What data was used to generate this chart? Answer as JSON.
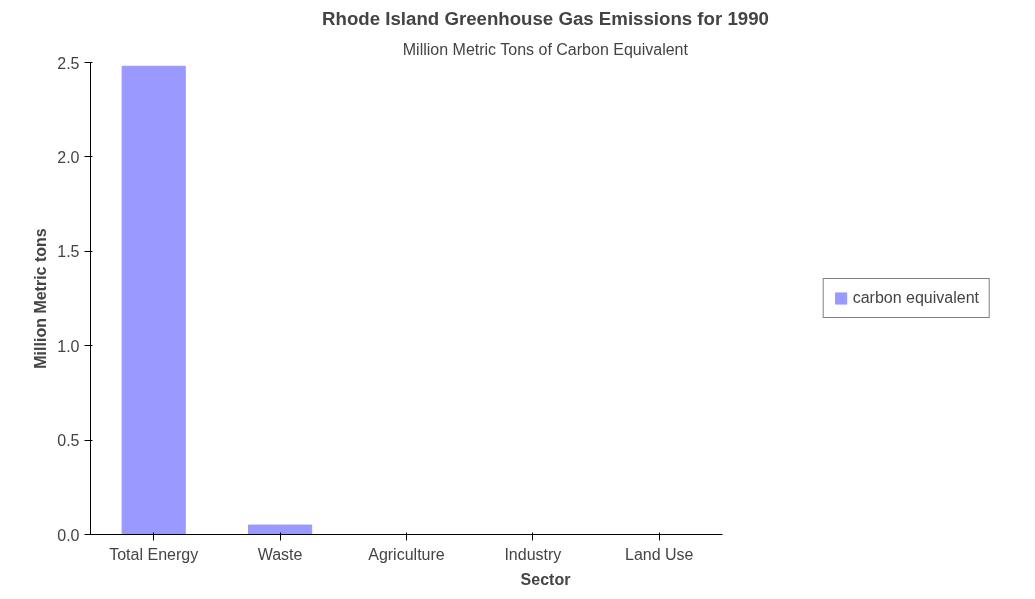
{
  "chart_data": {
    "type": "bar",
    "title": "Rhode Island Greenhouse Gas Emissions for 1990",
    "subtitle": "Million Metric Tons of Carbon Equivalent",
    "xlabel": "Sector",
    "ylabel": "Million Metric tons",
    "categories": [
      "Total Energy",
      "Waste",
      "Agriculture",
      "Industry",
      "Land Use"
    ],
    "series": [
      {
        "name": "carbon equivalent",
        "color": "#9999ff",
        "values": [
          2.48,
          0.05,
          0,
          0,
          0
        ]
      }
    ],
    "ylim": [
      0,
      2.5
    ],
    "yticks": [
      {
        "value": 0,
        "label": "0.0"
      },
      {
        "value": 0.5,
        "label": "0.5"
      },
      {
        "value": 1,
        "label": "1.0"
      },
      {
        "value": 1.5,
        "label": "1.5"
      },
      {
        "value": 2,
        "label": "2.0"
      },
      {
        "value": 2.5,
        "label": "2.5"
      }
    ],
    "grid": false,
    "legend": "right"
  }
}
